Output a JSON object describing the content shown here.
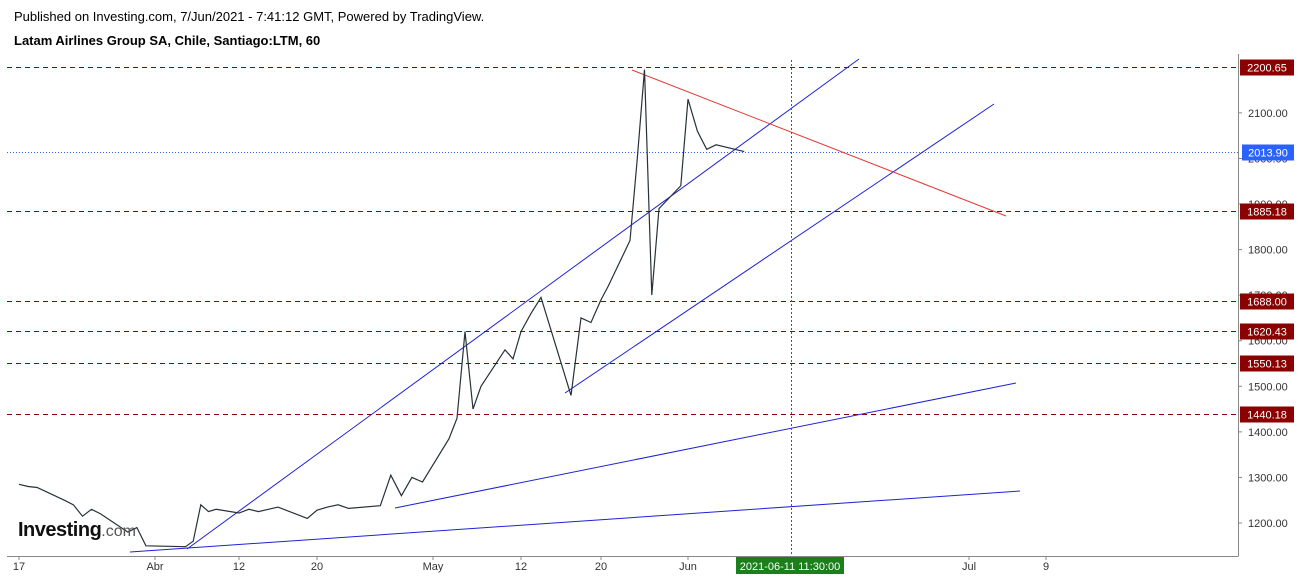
{
  "header": {
    "published": "Published on Investing.com, 7/Jun/2021 - 7:41:12 GMT, Powered by TradingView.",
    "symbol": "Latam Airlines Group SA, Chile, Santiago:LTM, 60"
  },
  "logo": {
    "main": "Investing",
    "suffix": ".com"
  },
  "chart_data": {
    "type": "line",
    "title": "Latam Airlines Group SA, Chile, Santiago:LTM, 60",
    "x_tick_labels": [
      "17",
      "Abr",
      "12",
      "20",
      "May",
      "12",
      "20",
      "Jun",
      "Jul",
      "9"
    ],
    "y_tick_labels": [
      "1200.00",
      "1300.00",
      "1400.00",
      "1500.00",
      "1600.00",
      "1700.00",
      "1800.00",
      "1900.00",
      "2000.00",
      "2100.00"
    ],
    "ylim": [
      1120,
      2240
    ],
    "current_price": "2013.90",
    "crosshair_label": "2021-06-11 11:30:00",
    "horizontal_levels": [
      {
        "value": 2200.65,
        "label": "2200.65"
      },
      {
        "value": 1885.18,
        "label": "1885.18"
      },
      {
        "value": 1688.0,
        "label": "1688.00"
      },
      {
        "value": 1620.43,
        "label": "1620.43"
      },
      {
        "value": 1550.13,
        "label": "1550.13"
      },
      {
        "value": 1440.18,
        "label": "1440.18"
      }
    ],
    "series": [
      {
        "x": [
          "2021-03-17",
          "2021-03-18",
          "2021-03-19",
          "2021-03-22",
          "2021-03-23",
          "2021-03-24",
          "2021-03-25",
          "2021-03-26",
          "2021-03-29",
          "2021-03-30",
          "2021-03-31",
          "2021-04-05",
          "2021-04-06",
          "2021-04-07",
          "2021-04-08",
          "2021-04-09",
          "2021-04-12",
          "2021-04-13",
          "2021-04-14",
          "2021-04-15",
          "2021-04-16",
          "2021-04-19",
          "2021-04-20",
          "2021-04-21",
          "2021-04-22",
          "2021-04-23",
          "2021-04-26",
          "2021-04-27",
          "2021-04-28",
          "2021-04-29",
          "2021-04-30",
          "2021-05-03",
          "2021-05-04",
          "2021-05-05",
          "2021-05-06",
          "2021-05-07",
          "2021-05-10",
          "2021-05-11",
          "2021-05-12",
          "2021-05-13",
          "2021-05-14",
          "2021-05-17",
          "2021-05-18",
          "2021-05-19",
          "2021-05-20",
          "2021-05-21",
          "2021-05-24",
          "2021-05-25",
          "2021-05-26",
          "2021-05-27",
          "2021-05-28",
          "2021-05-31",
          "2021-06-01",
          "2021-06-02",
          "2021-06-03",
          "2021-06-04",
          "2021-06-07"
        ],
        "values": [
          1285,
          1280,
          1278,
          1250,
          1240,
          1215,
          1230,
          1220,
          1180,
          1190,
          1150,
          1148,
          1160,
          1240,
          1225,
          1230,
          1222,
          1230,
          1225,
          1230,
          1235,
          1210,
          1228,
          1235,
          1240,
          1232,
          1238,
          1305,
          1260,
          1300,
          1290,
          1385,
          1430,
          1620,
          1450,
          1500,
          1580,
          1560,
          1620,
          1660,
          1695,
          1480,
          1650,
          1640,
          1690,
          1720,
          1820,
          2000,
          2195,
          1700,
          1890,
          1940,
          2130,
          2060,
          2020,
          2030,
          2015
        ]
      }
    ],
    "trendlines_color_red": "#e53935",
    "trendlines_color_blue": "#1e22d6",
    "price_line_color": "#263238",
    "level_color": "#8b0000",
    "current_price_color": "#2962ff",
    "crosshair_color": "#1b7f1b"
  }
}
